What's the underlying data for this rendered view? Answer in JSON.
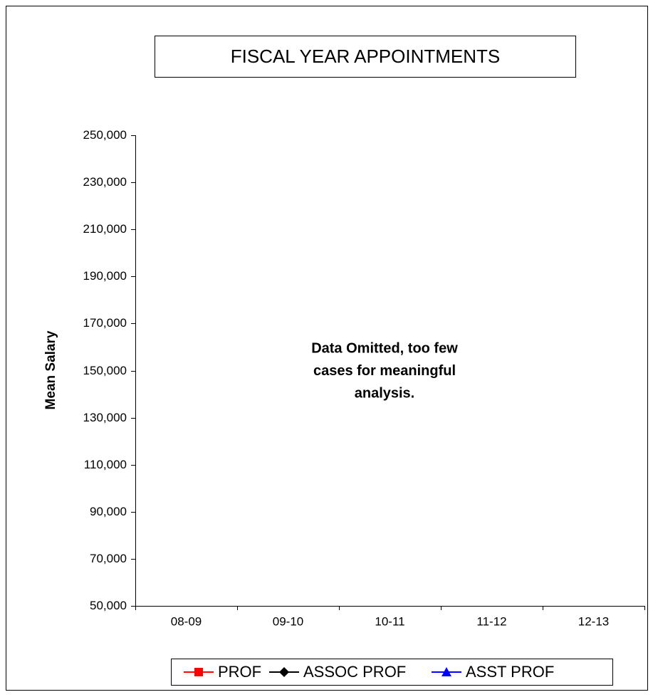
{
  "chart_data": {
    "type": "line",
    "title": "FISCAL YEAR APPOINTMENTS",
    "y_label": "Mean Salary",
    "annotation": [
      "Data Omitted, too few",
      "cases for meaningful",
      "analysis."
    ],
    "categories": [
      "08-09",
      "09-10",
      "10-11",
      "11-12",
      "12-13"
    ],
    "series": [
      {
        "name": "PROF",
        "color": "#ff0000",
        "marker": "square",
        "values": [
          null,
          null,
          null,
          null,
          null
        ]
      },
      {
        "name": "ASSOC PROF",
        "color": "#000000",
        "marker": "diamond",
        "values": [
          null,
          null,
          null,
          null,
          null
        ]
      },
      {
        "name": "ASST PROF",
        "color": "#0000ff",
        "marker": "triangle",
        "values": [
          null,
          null,
          null,
          null,
          null
        ]
      }
    ],
    "ylim": [
      50000,
      250000
    ],
    "yticks": [
      {
        "value": 50000,
        "label": "50,000"
      },
      {
        "value": 70000,
        "label": "70,000"
      },
      {
        "value": 90000,
        "label": "90,000"
      },
      {
        "value": 110000,
        "label": "110,000"
      },
      {
        "value": 130000,
        "label": "130,000"
      },
      {
        "value": 150000,
        "label": "150,000"
      },
      {
        "value": 170000,
        "label": "170,000"
      },
      {
        "value": 190000,
        "label": "190,000"
      },
      {
        "value": 210000,
        "label": "210,000"
      },
      {
        "value": 230000,
        "label": "230,000"
      },
      {
        "value": 250000,
        "label": "250,000"
      }
    ],
    "grid": false,
    "legend": "bottom"
  }
}
